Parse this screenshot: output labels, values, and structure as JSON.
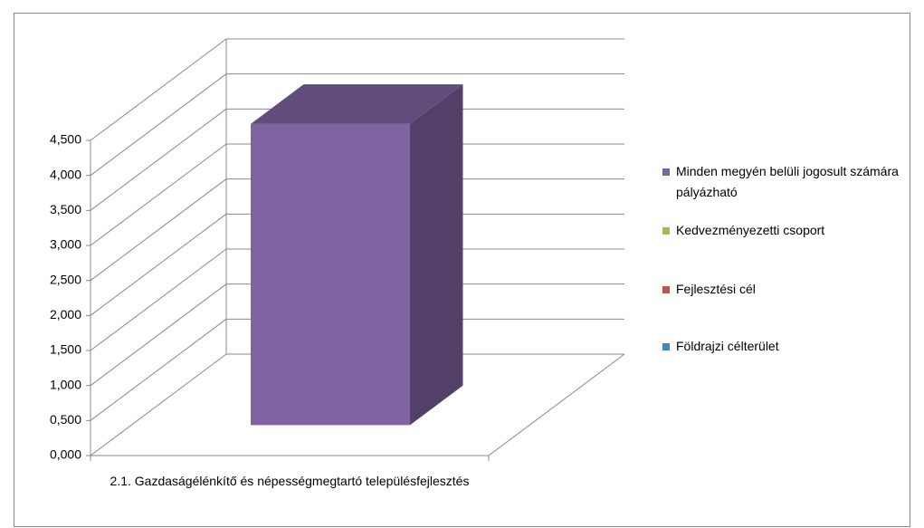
{
  "chart_data": {
    "type": "bar3d",
    "categories": [
      "2.1. Gazdaságélénkítő és népességmegtartó településfejlesztés"
    ],
    "series": [
      {
        "name": "Minden megyén belüli jogosult számára pályázható",
        "color": "#8064a2",
        "values": [
          4.3
        ]
      },
      {
        "name": "Kedvezményezetti csoport",
        "color": "#9bbb59",
        "values": [
          null
        ]
      },
      {
        "name": "Fejlesztési cél",
        "color": "#c0504d",
        "values": [
          null
        ]
      },
      {
        "name": "Földrajzi célterület",
        "color": "#4f81bd",
        "values": [
          null
        ]
      }
    ],
    "ylim": [
      0,
      4.5
    ],
    "yticks": [
      {
        "value": 0,
        "label": "0,000"
      },
      {
        "value": 0.5,
        "label": "0,500"
      },
      {
        "value": 1,
        "label": "1,000"
      },
      {
        "value": 1.5,
        "label": "1,500"
      },
      {
        "value": 2,
        "label": "2,000"
      },
      {
        "value": 2.5,
        "label": "2,500"
      },
      {
        "value": 3,
        "label": "3,000"
      },
      {
        "value": 3.5,
        "label": "3,500"
      },
      {
        "value": 4,
        "label": "4,000"
      },
      {
        "value": 4.5,
        "label": "4,500"
      }
    ],
    "grid": true,
    "legend": "right"
  }
}
